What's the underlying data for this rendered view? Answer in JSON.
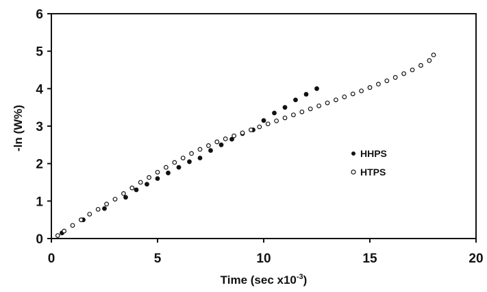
{
  "chart_data": {
    "type": "scatter",
    "xlabel_main": "Time (sec x10",
    "xlabel_exp": "-3",
    "xlabel_close": ")",
    "ylabel": "-ln (W%)",
    "xlim": [
      0,
      20
    ],
    "ylim": [
      0,
      6
    ],
    "x_ticks": [
      "0",
      "5",
      "10",
      "15",
      "20"
    ],
    "y_ticks": [
      "0",
      "1",
      "2",
      "3",
      "4",
      "5",
      "6"
    ],
    "grid": false,
    "legend_position": "right",
    "series": [
      {
        "name": "HHPS",
        "marker": "filled",
        "x": [
          0.5,
          1.5,
          2.5,
          3.5,
          4.0,
          4.5,
          5.0,
          5.5,
          6.0,
          6.5,
          7.0,
          7.5,
          8.0,
          8.5,
          9.0,
          9.5,
          10.0,
          10.5,
          11.0,
          11.5,
          12.0,
          12.5
        ],
        "y": [
          0.15,
          0.5,
          0.8,
          1.1,
          1.3,
          1.45,
          1.6,
          1.75,
          1.9,
          2.05,
          2.15,
          2.35,
          2.5,
          2.65,
          2.8,
          2.9,
          3.15,
          3.35,
          3.5,
          3.7,
          3.85,
          4.0
        ]
      },
      {
        "name": "HTPS",
        "marker": "open",
        "x": [
          0.3,
          0.6,
          1.0,
          1.4,
          1.8,
          2.2,
          2.6,
          3.0,
          3.4,
          3.8,
          4.2,
          4.6,
          5.0,
          5.4,
          5.8,
          6.2,
          6.6,
          7.0,
          7.4,
          7.8,
          8.2,
          8.6,
          9.0,
          9.4,
          9.8,
          10.2,
          10.6,
          11.0,
          11.4,
          11.8,
          12.2,
          12.6,
          13.0,
          13.4,
          13.8,
          14.2,
          14.6,
          15.0,
          15.4,
          15.8,
          16.2,
          16.6,
          17.0,
          17.4,
          17.8,
          18.0
        ],
        "y": [
          0.08,
          0.2,
          0.35,
          0.5,
          0.65,
          0.78,
          0.92,
          1.05,
          1.2,
          1.35,
          1.5,
          1.63,
          1.77,
          1.9,
          2.03,
          2.15,
          2.27,
          2.38,
          2.48,
          2.58,
          2.66,
          2.74,
          2.82,
          2.9,
          2.98,
          3.06,
          3.14,
          3.22,
          3.3,
          3.38,
          3.46,
          3.54,
          3.62,
          3.7,
          3.78,
          3.86,
          3.94,
          4.03,
          4.12,
          4.21,
          4.3,
          4.4,
          4.5,
          4.62,
          4.75,
          4.9
        ]
      }
    ]
  }
}
